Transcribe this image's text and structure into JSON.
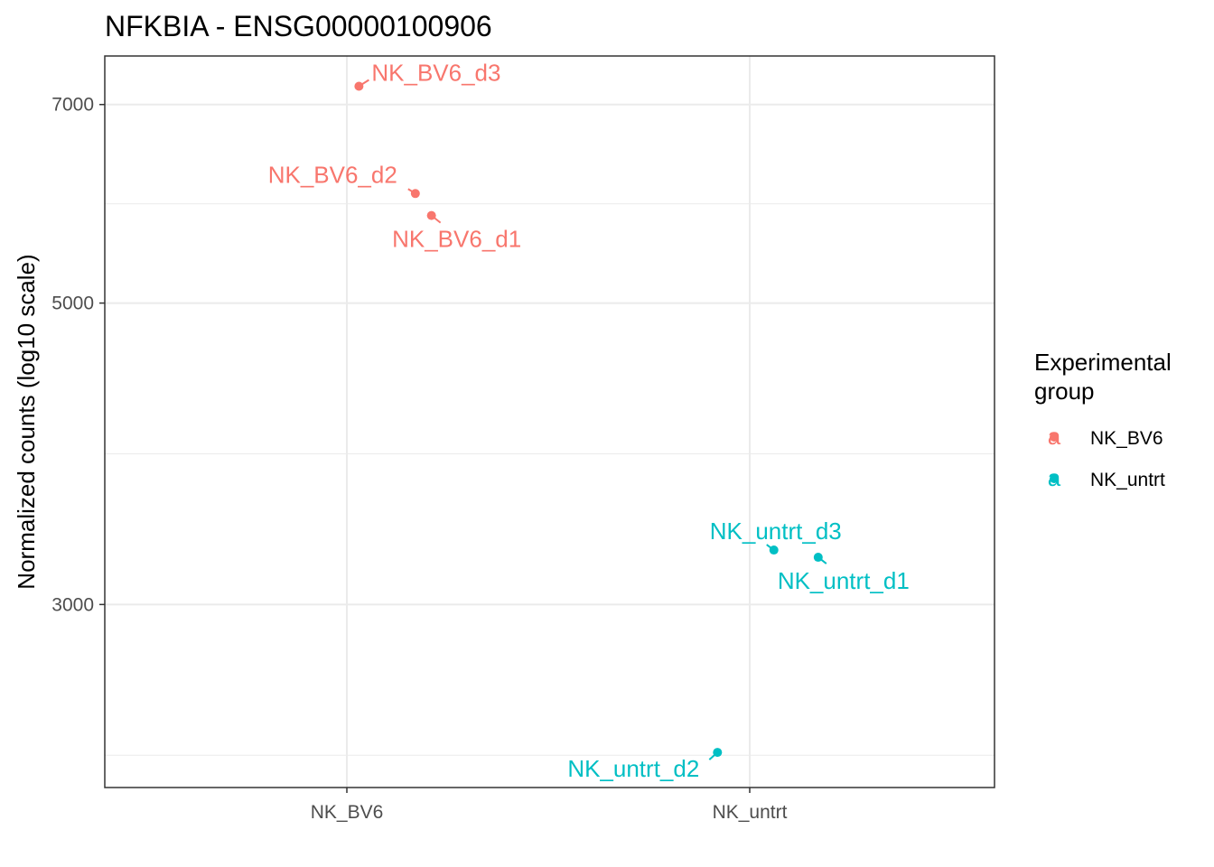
{
  "chart_data": {
    "type": "scatter",
    "title": "NFKBIA - ENSG00000100906",
    "xlabel": "",
    "ylabel": "Normalized counts (log10 scale)",
    "y_scale": "log10",
    "ylim": [
      2200,
      7600
    ],
    "y_ticks": [
      {
        "value": 3000,
        "label": "3000"
      },
      {
        "value": 5000,
        "label": "5000"
      },
      {
        "value": 7000,
        "label": "7000"
      }
    ],
    "categories": [
      "NK_BV6",
      "NK_untrt"
    ],
    "grid": true,
    "legend": {
      "title_lines": [
        "Experimental",
        "group"
      ],
      "placement": "right",
      "glyph": "a"
    },
    "series": [
      {
        "name": "NK_BV6",
        "color": "#F8766D",
        "points": [
          {
            "category": "NK_BV6",
            "jitter": 0.03,
            "y": 7220,
            "label": "NK_BV6_d3"
          },
          {
            "category": "NK_BV6",
            "jitter": 0.17,
            "y": 6020,
            "label": "NK_BV6_d2"
          },
          {
            "category": "NK_BV6",
            "jitter": 0.21,
            "y": 5800,
            "label": "NK_BV6_d1"
          }
        ]
      },
      {
        "name": "NK_untrt",
        "color": "#00BFC4",
        "points": [
          {
            "category": "NK_untrt",
            "jitter": 0.06,
            "y": 3290,
            "label": "NK_untrt_d3"
          },
          {
            "category": "NK_untrt",
            "jitter": 0.17,
            "y": 3250,
            "label": "NK_untrt_d1"
          },
          {
            "category": "NK_untrt",
            "jitter": -0.08,
            "y": 2335,
            "label": "NK_untrt_d2"
          }
        ]
      }
    ]
  }
}
